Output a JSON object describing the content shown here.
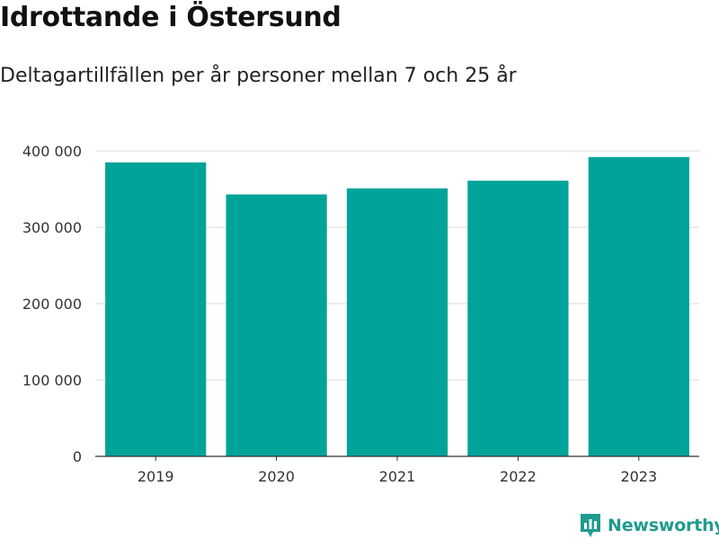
{
  "header": {
    "title": "Idrottande i Östersund",
    "subtitle": "Deltagartillfällen per år personer mellan 7 och 25 år"
  },
  "brand": {
    "name": "Newsworthy",
    "icon": "newsworthy-logo-icon",
    "color": "#1f9b8f"
  },
  "chart_data": {
    "type": "bar",
    "title": "Idrottande i Östersund",
    "subtitle": "Deltagartillfällen per år personer mellan 7 och 25 år",
    "categories": [
      "2019",
      "2020",
      "2021",
      "2022",
      "2023"
    ],
    "values": [
      385000,
      343000,
      351000,
      361000,
      392000
    ],
    "ylim": [
      0,
      400000
    ],
    "yticks": [
      0,
      100000,
      200000,
      300000,
      400000
    ],
    "ytick_labels": [
      "0",
      "100 000",
      "200 000",
      "300 000",
      "400 000"
    ],
    "xlabel": "",
    "ylabel": "",
    "grid": true,
    "bar_color": "#00a39a"
  }
}
